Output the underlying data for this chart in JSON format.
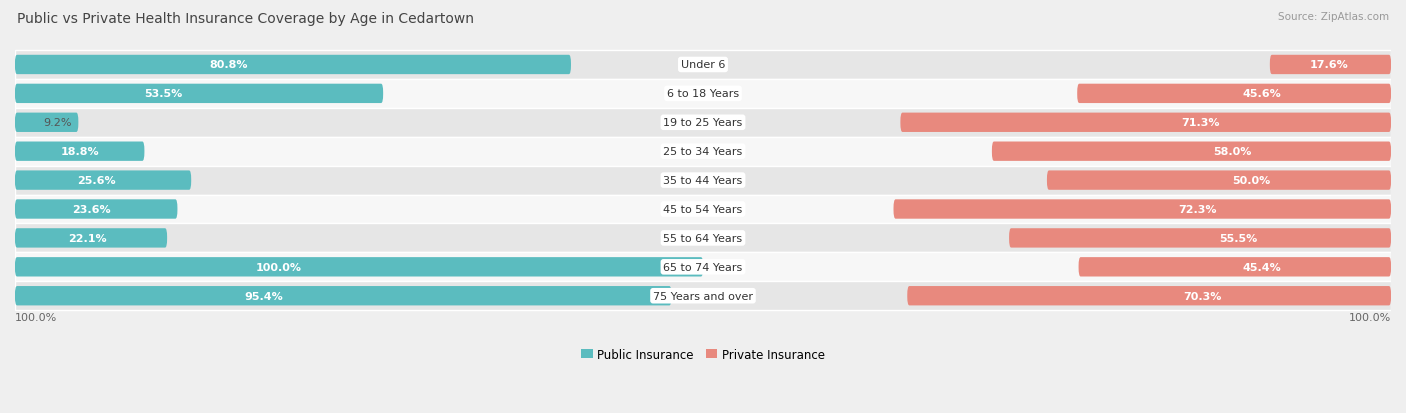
{
  "title": "Public vs Private Health Insurance Coverage by Age in Cedartown",
  "source": "Source: ZipAtlas.com",
  "categories": [
    "Under 6",
    "6 to 18 Years",
    "19 to 25 Years",
    "25 to 34 Years",
    "35 to 44 Years",
    "45 to 54 Years",
    "55 to 64 Years",
    "65 to 74 Years",
    "75 Years and over"
  ],
  "public_values": [
    80.8,
    53.5,
    9.2,
    18.8,
    25.6,
    23.6,
    22.1,
    100.0,
    95.4
  ],
  "private_values": [
    17.6,
    45.6,
    71.3,
    58.0,
    50.0,
    72.3,
    55.5,
    45.4,
    70.3
  ],
  "public_color": "#5bbcbf",
  "private_color": "#e8897e",
  "bg_color": "#efefef",
  "row_bg_light": "#f7f7f7",
  "row_bg_dark": "#e6e6e6",
  "max_value": 100.0,
  "title_fontsize": 10,
  "label_fontsize": 8,
  "category_fontsize": 8,
  "legend_fontsize": 8.5,
  "source_fontsize": 7.5,
  "bar_height": 0.65
}
